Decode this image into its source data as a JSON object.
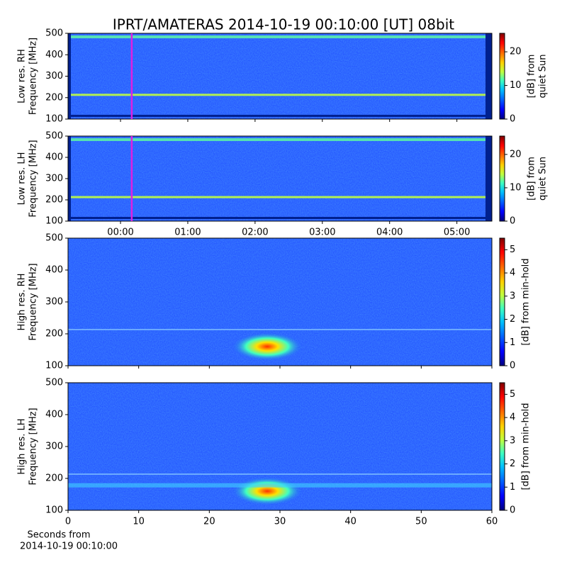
{
  "title": "IPRT/AMATERAS 2014-10-19 00:10:00 [UT]   08bit",
  "xlabel": [
    "Seconds from",
    "2014-10-19 00:10:00"
  ],
  "chart_data": [
    {
      "type": "spectrogram",
      "ylabel": [
        "Low res. RH",
        "Frequency [MHz]"
      ],
      "xlim": [
        -0.78,
        5.52
      ],
      "xticks": [
        0,
        1,
        2,
        3,
        4,
        5
      ],
      "ylim": [
        100,
        500
      ],
      "yticks": [
        100,
        200,
        300,
        400,
        500
      ],
      "marker_x": 0.1667,
      "marker_color": "#e020e0",
      "colormap": "jet",
      "clim": [
        0,
        25.5
      ],
      "cticks": [
        0,
        10,
        20
      ],
      "clabel": [
        "[dB] from",
        "quiet Sun"
      ]
    },
    {
      "type": "spectrogram",
      "ylabel": [
        "Low res. LH",
        "Frequency [MHz]"
      ],
      "xlim": [
        -0.78,
        5.52
      ],
      "xticks": [
        {
          "value": 0,
          "label": "00:00"
        },
        {
          "value": 1,
          "label": "01:00"
        },
        {
          "value": 2,
          "label": "02:00"
        },
        {
          "value": 3,
          "label": "03:00"
        },
        {
          "value": 4,
          "label": "04:00"
        },
        {
          "value": 5,
          "label": "05:00"
        }
      ],
      "ylim": [
        100,
        500
      ],
      "yticks": [
        100,
        200,
        300,
        400,
        500
      ],
      "marker_x": 0.1667,
      "marker_color": "#e020e0",
      "colormap": "jet",
      "clim": [
        0,
        25.5
      ],
      "cticks": [
        0,
        10,
        20
      ],
      "clabel": [
        "[dB] from",
        "quiet Sun"
      ]
    },
    {
      "type": "spectrogram",
      "ylabel": [
        "High res. RH",
        "Frequency [MHz]"
      ],
      "xlim": [
        0,
        60
      ],
      "xticks": [
        0,
        10,
        20,
        30,
        40,
        50,
        60
      ],
      "ylim": [
        100,
        500
      ],
      "yticks": [
        100,
        200,
        300,
        400,
        500
      ],
      "colormap": "jet",
      "clim": [
        0,
        5.5
      ],
      "cticks": [
        0,
        1,
        2,
        3,
        4,
        5
      ],
      "clabel": [
        "[dB] from min-hold"
      ]
    },
    {
      "type": "spectrogram",
      "ylabel": [
        "High res. LH",
        "Frequency [MHz]"
      ],
      "xlim": [
        0,
        60
      ],
      "xticks": [
        0,
        10,
        20,
        30,
        40,
        50,
        60
      ],
      "ylim": [
        100,
        500
      ],
      "yticks": [
        100,
        200,
        300,
        400,
        500
      ],
      "colormap": "jet",
      "clim": [
        0,
        5.5
      ],
      "cticks": [
        0,
        1,
        2,
        3,
        4,
        5
      ],
      "clabel": [
        "[dB] from min-hold"
      ]
    }
  ]
}
